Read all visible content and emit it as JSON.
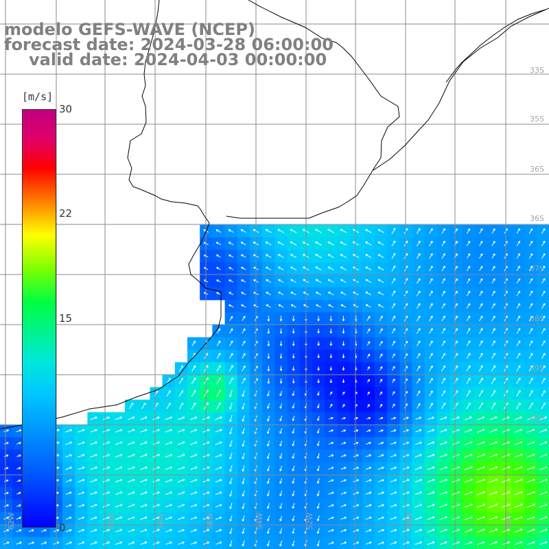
{
  "header": {
    "model_line": "modelo GEFS-WAVE (NCEP)",
    "forecast_line": "forecast date: 2024-03-28 06:00:00",
    "valid_line": "valid date: 2024-04-03 00:00:00"
  },
  "colorbar": {
    "unit": "[m/s]",
    "min": 0,
    "max": 30,
    "ticks": [
      {
        "value": 30,
        "label": "30"
      },
      {
        "value": 22,
        "label": "22"
      },
      {
        "value": 15,
        "label": "15"
      },
      {
        "value": 0,
        "label": "0"
      }
    ],
    "colors": [
      "#0000ff",
      "#0060ff",
      "#00c8ff",
      "#00e0e0",
      "#00ff40",
      "#80ff00",
      "#ffff00",
      "#ff8000",
      "#ff0000",
      "#e0006a",
      "#c0007f"
    ]
  },
  "map": {
    "land_color": "#ffffff",
    "grid_color": "#888888",
    "arrow_color": "#ffffff",
    "lat_labels": [
      "33S",
      "35S",
      "36S",
      "36S",
      "37S",
      "38S",
      "39S",
      "40S"
    ],
    "lon_labels": [
      "62W",
      "60W",
      "58W",
      "56W",
      "54W",
      "52W",
      "50W",
      "48W"
    ]
  }
}
